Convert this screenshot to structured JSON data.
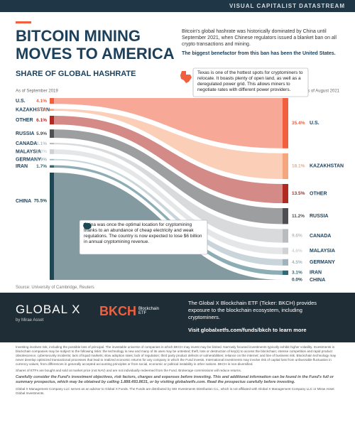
{
  "header": {
    "brand": "VISUAL CAPITALIST DATASTREAM",
    "title_line1": "BITCOIN MINING",
    "title_line2": "MOVES TO AMERICA",
    "intro": "Bitcoin's global hashrate was historically dominated by China until September 2021, when Chinese regulators issued a blanket ban on all crypto transactions and mining.",
    "intro_bold": "The biggest benefactor from this ban has been the United States."
  },
  "chart_data": {
    "type": "sankey",
    "title": "SHARE OF GLOBAL HASHRATE",
    "from_label": "As of September 2019",
    "to_label": "As of August 2021",
    "categories": [
      "U.S.",
      "KAZAKHSTAN",
      "OTHER",
      "RUSSIA",
      "CANADA",
      "MALAYSIA",
      "GERMANY",
      "IRAN",
      "CHINA"
    ],
    "colors": [
      "#f0603f",
      "#f6a67c",
      "#b02a22",
      "#4d4f52",
      "#b9bcbf",
      "#cfd1d3",
      "#9fb3bd",
      "#2f6a77",
      "#1d4753"
    ],
    "from": {
      "values": [
        4.1,
        1.4,
        6.1,
        5.9,
        1.1,
        3.3,
        0.9,
        1.7,
        75.5
      ],
      "value_labels": [
        "4.1%",
        "1.4%",
        "6.1%",
        "5.9%",
        "1.1%",
        "3.3%",
        "0.9%",
        "1.7%",
        "75.5%"
      ]
    },
    "to": {
      "values": [
        35.4,
        18.1,
        13.5,
        11.2,
        9.6,
        4.6,
        4.5,
        3.1,
        0.0
      ],
      "value_labels": [
        "35.4%",
        "18.1%",
        "13.5%",
        "11.2%",
        "9.6%",
        "4.6%",
        "4.5%",
        "3.1%",
        "0.0%"
      ]
    },
    "annotations": [
      "Texas is one of the hottest spots for cryptominers to relocate. It boasts plenty of open land, as well as a deregulated power grid. This allows miners to negotiate rates with different power providers.",
      "China was once the optimal location for cryptomining thanks to an abundance of cheap electricity and weak regulations. The country is now expected to lose $6 billion in annual cryptomining revenue."
    ],
    "source": "Source: University of Cambridge, Reuters"
  },
  "sponsor": {
    "logo1": "GLOBAL X",
    "logo1_sub": "by Mirae Asset",
    "logo2": "BKCH",
    "logo2_sub": "Blockchain ETF",
    "text": "The Global X Blockchain ETF (Ticker: BKCH) provides exposure to the blockchain ecosystem, including cryptominers.",
    "link": "Visit globalxetfs.com/funds/bkch to learn more"
  },
  "disclaimer": [
    "Investing involves risk, including the possible loss of principal. The investable universe of companies in which BKCH may invest may be limited. Narrowly focused investments typically exhibit higher volatility. Investments in blockchain companies may be subject to the following risks: the technology is new and many of its uses may be untested; theft, loss or destruction of key(s) to access the blockchain; intense competition and rapid product obsolescence; cybersecurity incidents; lack of liquid markets; slow adoption rates; lack of regulation; third party product defects or vulnerabilities; reliance on the internet; and line of business risk. Blockchain technology may never develop optimized transactional processes that lead to realized economic returns for any company in which the Fund invests. International investments may involve risk of capital loss from unfavorable fluctuation in currency values, from differences in generally accepted accounting principles or from social, economic or political instability in other nations. BKCH is non-diversified.",
    "Shares of ETFs are bought and sold at market price (not NAV) and are not individually redeemed from the Fund. Brokerage commissions will reduce returns.",
    "Carefully consider the Fund's investment objectives, risk factors, charges and expenses before investing. This and additional information can be found in the Fund's full or summary prospectus, which may be obtained by calling 1.888.493.8631, or by visiting globalxetfs.com. Read the prospectus carefully before investing.",
    "Global X Management Company LLC serves as an advisor to Global X Funds. The Funds are distributed by SEI Investments Distribution Co., which is not affiliated with Global X Management Company LLC or Mirae Asset Global Investments."
  ]
}
